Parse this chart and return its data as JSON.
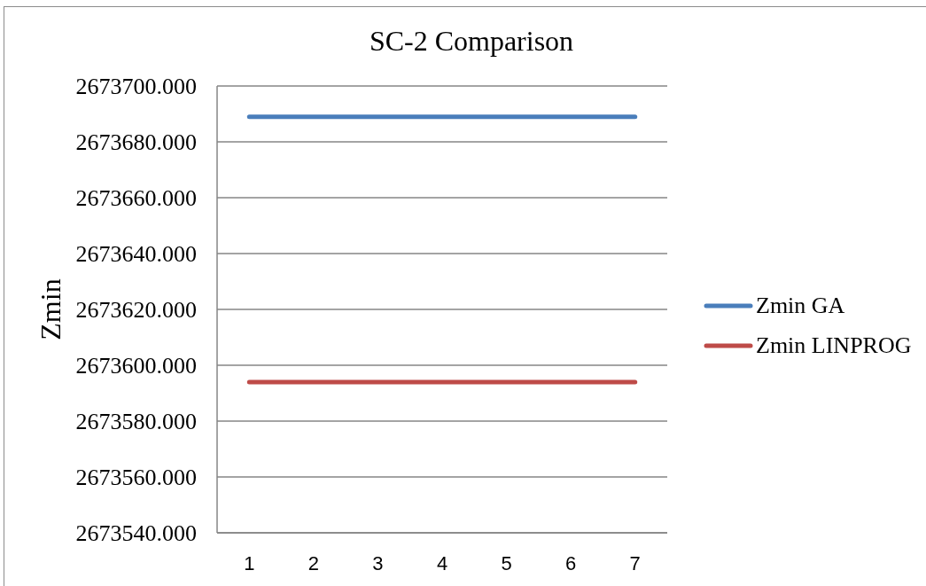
{
  "chart_data": {
    "type": "line",
    "title": "SC-2 Comparison",
    "ylabel": "Zmin",
    "categories": [
      "1",
      "2",
      "3",
      "4",
      "5",
      "6",
      "7"
    ],
    "series": [
      {
        "name": "Zmin GA",
        "color": "#4a7ebb",
        "values": [
          2673689,
          2673689,
          2673689,
          2673689,
          2673689,
          2673689,
          2673689
        ]
      },
      {
        "name": "Zmin LINPROG",
        "color": "#be4b48",
        "values": [
          2673594,
          2673594,
          2673594,
          2673594,
          2673594,
          2673594,
          2673594
        ]
      }
    ],
    "ylim": [
      2673540,
      2673700
    ],
    "yticks": [
      {
        "value": 2673540,
        "label": "2673540.000"
      },
      {
        "value": 2673560,
        "label": "2673560.000"
      },
      {
        "value": 2673580,
        "label": "2673580.000"
      },
      {
        "value": 2673600,
        "label": "2673600.000"
      },
      {
        "value": 2673620,
        "label": "2673620.000"
      },
      {
        "value": 2673640,
        "label": "2673640.000"
      },
      {
        "value": 2673660,
        "label": "2673660.000"
      },
      {
        "value": 2673680,
        "label": "2673680.000"
      },
      {
        "value": 2673700,
        "label": "2673700.000"
      }
    ],
    "grid": "y",
    "legend": "right",
    "marker": "none",
    "line_style": "solid"
  }
}
